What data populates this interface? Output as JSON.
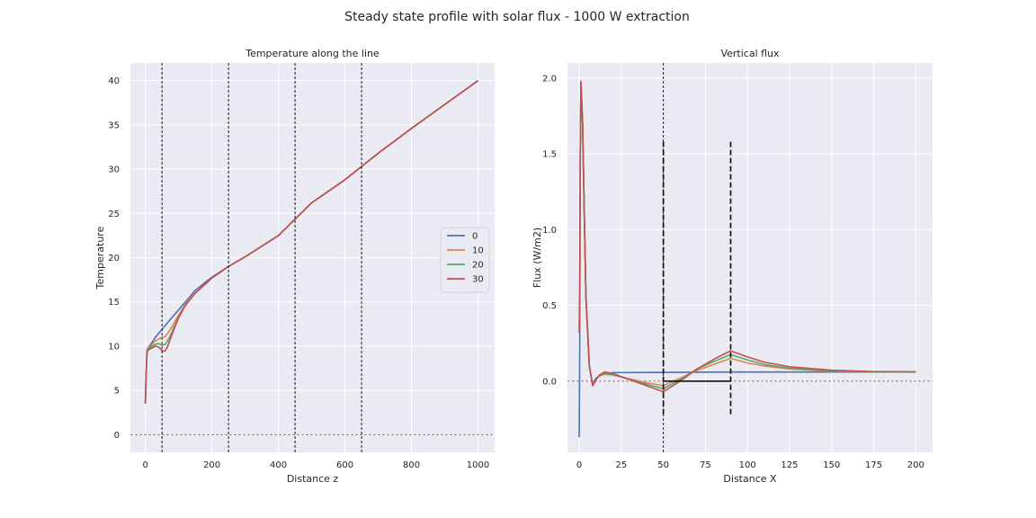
{
  "figure": {
    "title": "Steady state profile with solar flux - 1000 W extraction"
  },
  "chart_data": [
    {
      "type": "line",
      "title": "Temperature along the line",
      "xlabel": "Distance z",
      "ylabel": "Temperature",
      "xlim": [
        -45,
        1050
      ],
      "ylim": [
        -2,
        42
      ],
      "xticks": [
        0,
        200,
        400,
        600,
        800,
        1000
      ],
      "yticks": [
        0,
        5,
        10,
        15,
        20,
        25,
        30,
        35,
        40
      ],
      "grid": true,
      "legend": {
        "placement": "center-right",
        "entries": [
          "0",
          "10",
          "20",
          "30"
        ]
      },
      "reference_lines": {
        "horizontal_dashed_red": 0,
        "vertical_dashed_black": [
          50,
          250,
          450,
          650
        ]
      },
      "series": [
        {
          "name": "0",
          "color": "#4c72b0",
          "x": [
            0,
            2,
            5,
            10,
            20,
            30,
            50,
            70,
            100,
            150,
            200,
            250,
            300,
            400,
            500,
            600,
            700,
            800,
            900,
            1000
          ],
          "y": [
            3.5,
            6.5,
            9.6,
            9.9,
            10.4,
            11.0,
            11.9,
            12.8,
            14.1,
            16.3,
            17.8,
            19.0,
            20.1,
            22.5,
            26.2,
            28.8,
            31.8,
            34.6,
            37.3,
            40.0
          ]
        },
        {
          "name": "10",
          "color": "#dd8452",
          "x": [
            0,
            2,
            5,
            10,
            20,
            30,
            50,
            60,
            70,
            80,
            90,
            100,
            120,
            150,
            200,
            250,
            300,
            400,
            500,
            600,
            700,
            800,
            900,
            1000
          ],
          "y": [
            3.5,
            6.5,
            9.6,
            9.8,
            10.2,
            10.6,
            11.0,
            11.1,
            11.6,
            12.2,
            12.9,
            13.5,
            14.7,
            16.0,
            17.7,
            19.0,
            20.1,
            22.5,
            26.2,
            28.8,
            31.8,
            34.6,
            37.3,
            40.0
          ]
        },
        {
          "name": "20",
          "color": "#55a868",
          "x": [
            0,
            2,
            5,
            10,
            20,
            30,
            40,
            50,
            60,
            70,
            80,
            90,
            100,
            120,
            150,
            200,
            250,
            300,
            400,
            500,
            600,
            700,
            800,
            900,
            1000
          ],
          "y": [
            3.5,
            6.5,
            9.5,
            9.7,
            10.0,
            10.2,
            10.3,
            10.1,
            10.2,
            10.8,
            11.6,
            12.5,
            13.3,
            14.6,
            16.0,
            17.7,
            19.0,
            20.1,
            22.5,
            26.2,
            28.8,
            31.8,
            34.6,
            37.3,
            40.0
          ]
        },
        {
          "name": "30",
          "color": "#c44e52",
          "x": [
            0,
            2,
            5,
            10,
            20,
            30,
            40,
            50,
            55,
            60,
            65,
            70,
            80,
            90,
            100,
            120,
            150,
            200,
            250,
            300,
            400,
            500,
            600,
            700,
            800,
            900,
            1000
          ],
          "y": [
            3.5,
            6.5,
            9.4,
            9.6,
            9.8,
            10.0,
            9.9,
            9.5,
            9.4,
            9.5,
            9.8,
            10.3,
            11.3,
            12.3,
            13.2,
            14.6,
            16.0,
            17.7,
            19.0,
            20.1,
            22.5,
            26.2,
            28.8,
            31.8,
            34.6,
            37.3,
            40.0
          ]
        }
      ]
    },
    {
      "type": "line",
      "title": "Vertical flux",
      "xlabel": "Distance X",
      "ylabel": "Flux (W/m2)",
      "xlim": [
        -7,
        210
      ],
      "ylim": [
        -0.47,
        2.1
      ],
      "xticks": [
        0,
        25,
        50,
        75,
        100,
        125,
        150,
        175,
        200
      ],
      "yticks": [
        0.0,
        0.5,
        1.0,
        1.5,
        2.0
      ],
      "grid": true,
      "reference_lines": {
        "horizontal_dashed_red": 0,
        "vertical_dashed_black_marker": [
          50,
          90
        ],
        "vertical_dashed_black_bold": [
          {
            "x": 50,
            "y0": -0.23,
            "y1": 1.58
          },
          {
            "x": 90,
            "y0": -0.23,
            "y1": 1.58
          }
        ],
        "solid_black_segment": {
          "x0": 50,
          "x1": 90,
          "y": 0
        }
      },
      "series": [
        {
          "name": "0",
          "color": "#4c72b0",
          "x": [
            0,
            0.3,
            0.6,
            1,
            2,
            3,
            4,
            6,
            8,
            10,
            15,
            20,
            50,
            90,
            150,
            200
          ],
          "y": [
            -0.37,
            0.3,
            1.5,
            1.95,
            1.7,
            1.1,
            0.55,
            0.1,
            -0.02,
            0.02,
            0.05,
            0.056,
            0.058,
            0.06,
            0.06,
            0.06
          ]
        },
        {
          "name": "10",
          "color": "#dd8452",
          "x": [
            0,
            0.3,
            0.6,
            1,
            2,
            3,
            4,
            6,
            8,
            10,
            12,
            15,
            20,
            30,
            40,
            50,
            60,
            70,
            80,
            90,
            100,
            110,
            125,
            150,
            175,
            200
          ],
          "y": [
            0.32,
            0.6,
            1.5,
            1.97,
            1.7,
            1.1,
            0.55,
            0.1,
            -0.025,
            0.01,
            0.035,
            0.045,
            0.04,
            0.015,
            -0.01,
            -0.03,
            0.02,
            0.07,
            0.11,
            0.15,
            0.12,
            0.1,
            0.08,
            0.065,
            0.06,
            0.06
          ]
        },
        {
          "name": "20",
          "color": "#55a868",
          "x": [
            0,
            0.3,
            0.6,
            1,
            2,
            3,
            4,
            6,
            8,
            10,
            12,
            15,
            20,
            30,
            40,
            50,
            60,
            70,
            80,
            90,
            100,
            110,
            125,
            150,
            175,
            200
          ],
          "y": [
            0.32,
            0.6,
            1.5,
            1.97,
            1.7,
            1.1,
            0.55,
            0.1,
            -0.03,
            0.01,
            0.04,
            0.05,
            0.045,
            0.01,
            -0.02,
            -0.05,
            0.01,
            0.08,
            0.13,
            0.175,
            0.14,
            0.11,
            0.085,
            0.068,
            0.06,
            0.06
          ]
        },
        {
          "name": "30",
          "color": "#c44e52",
          "x": [
            0,
            0.3,
            0.6,
            1,
            2,
            3,
            4,
            6,
            8,
            10,
            12,
            15,
            20,
            30,
            40,
            50,
            60,
            70,
            80,
            90,
            100,
            110,
            125,
            150,
            175,
            200
          ],
          "y": [
            0.32,
            0.6,
            1.5,
            1.98,
            1.7,
            1.1,
            0.55,
            0.1,
            -0.03,
            0.01,
            0.04,
            0.06,
            0.05,
            0.01,
            -0.03,
            -0.07,
            0.0,
            0.08,
            0.145,
            0.2,
            0.16,
            0.125,
            0.095,
            0.072,
            0.063,
            0.062
          ]
        }
      ]
    }
  ]
}
